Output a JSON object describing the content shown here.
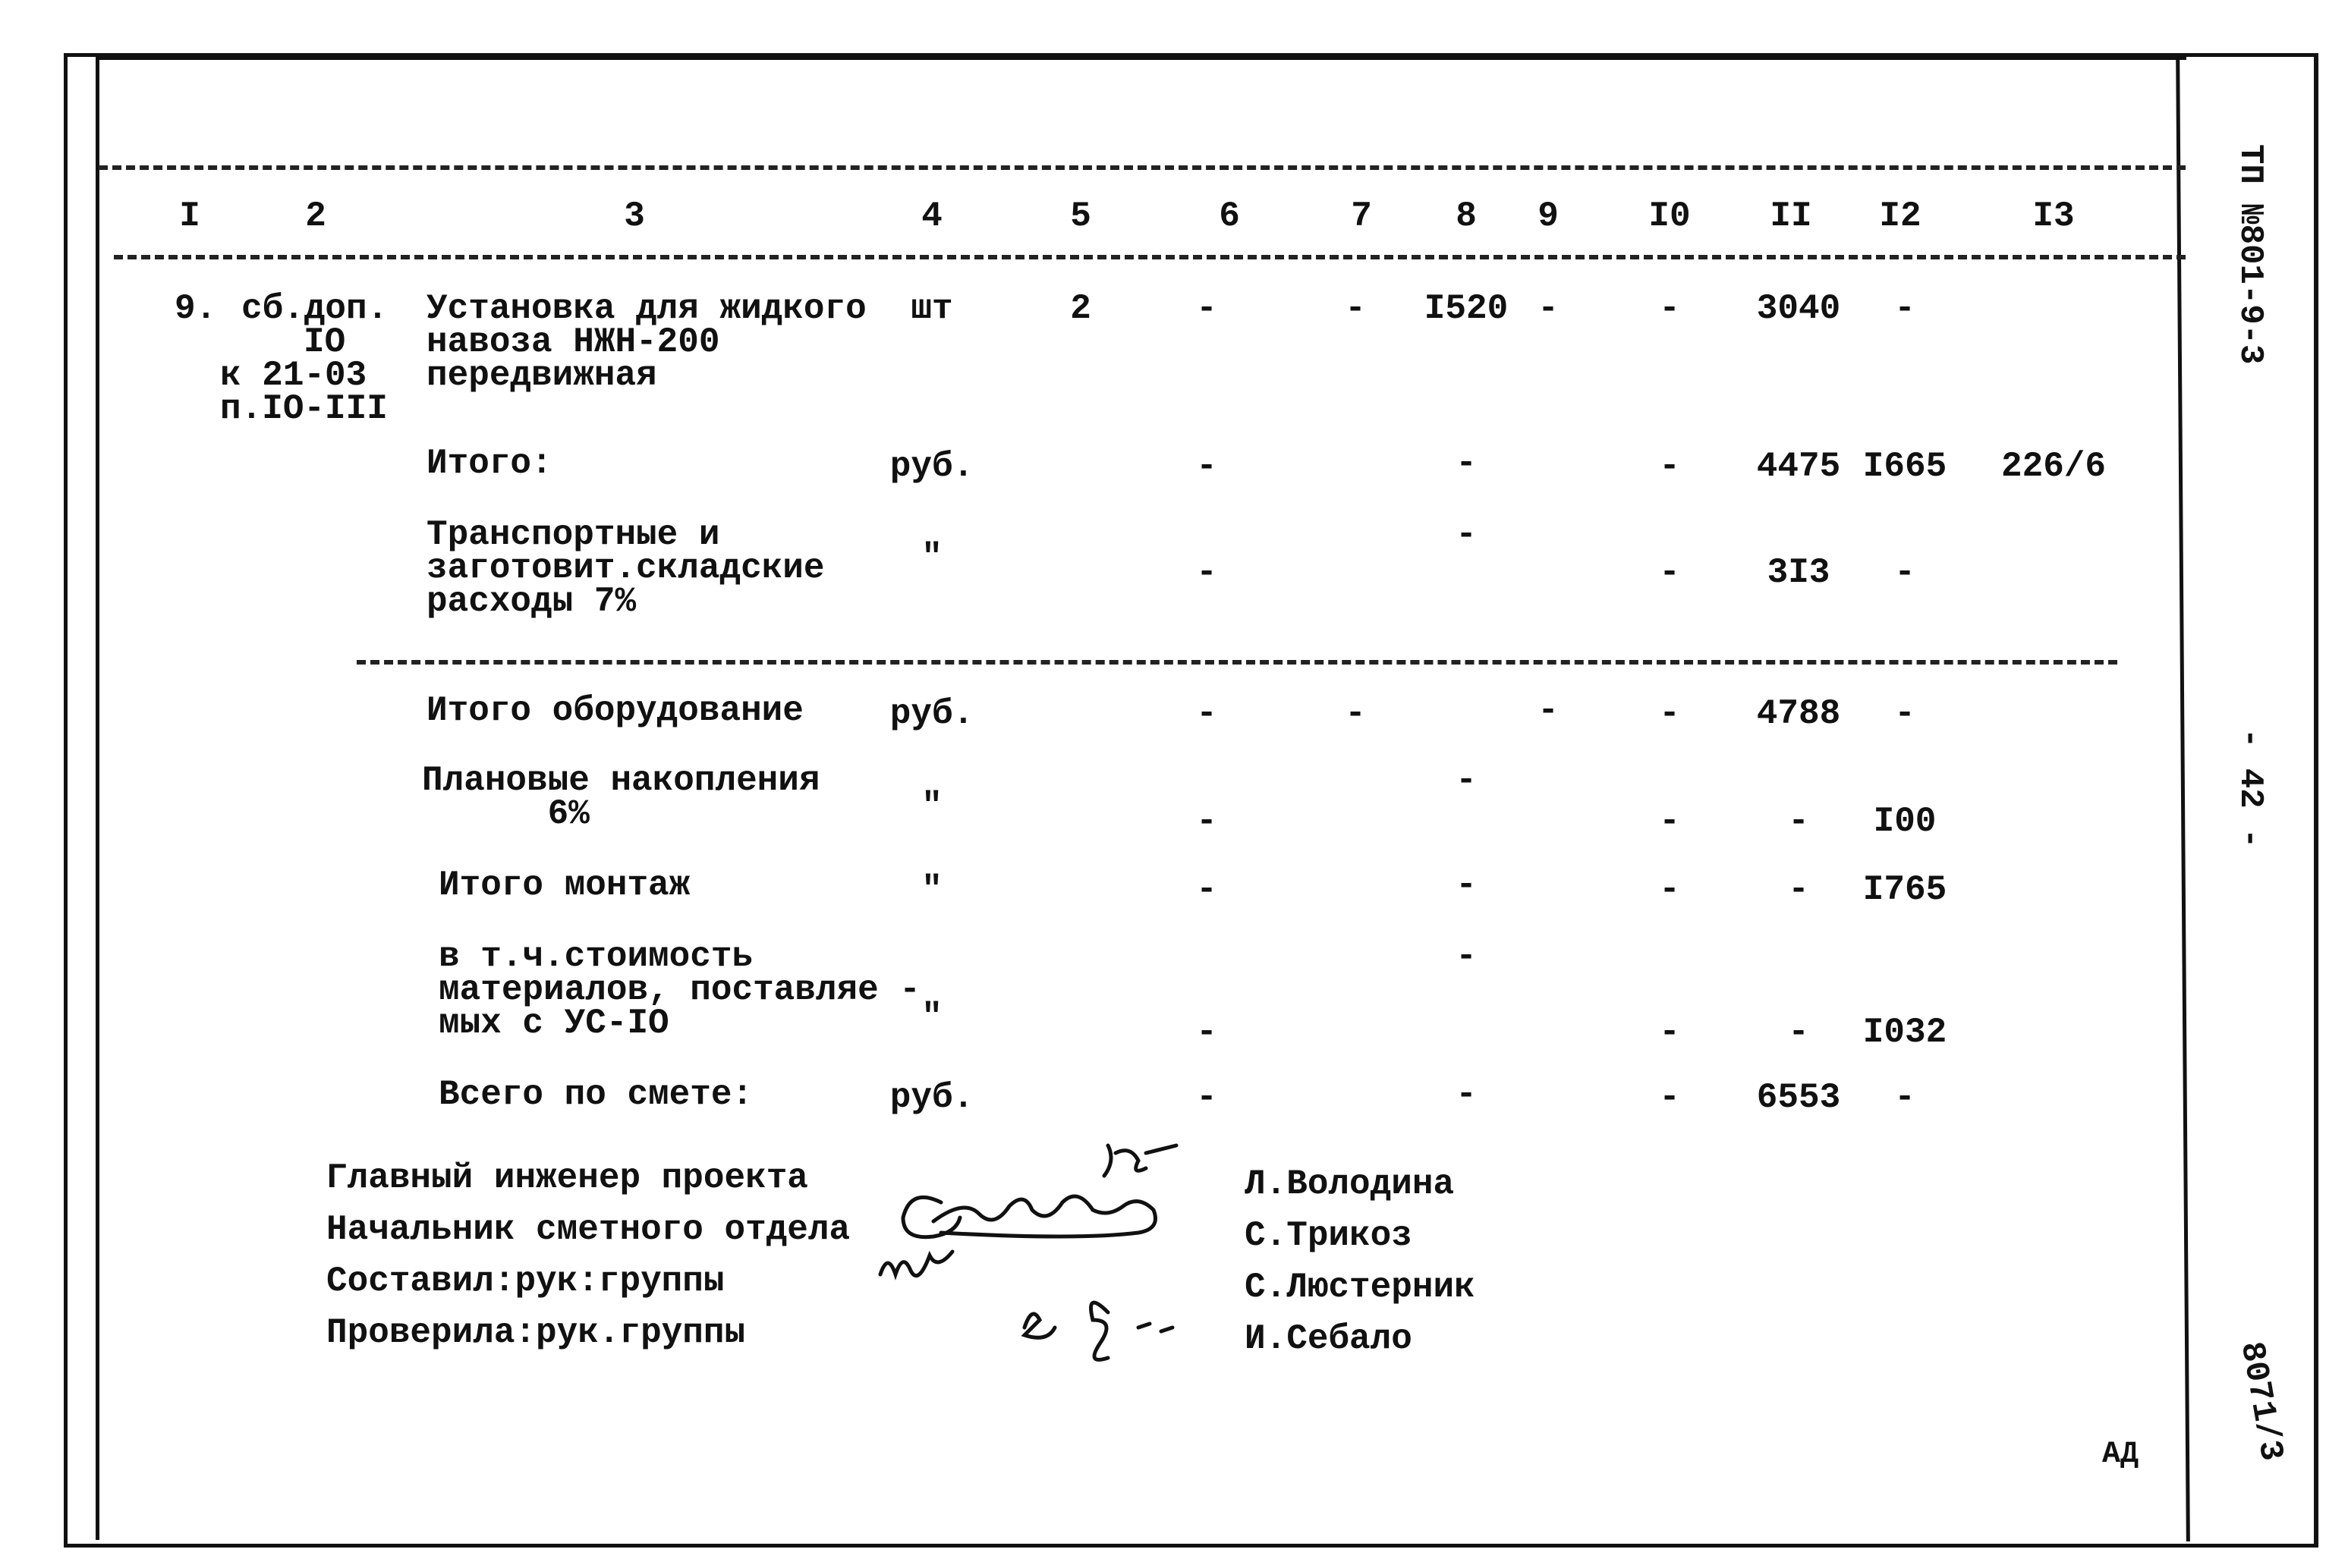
{
  "header": {
    "columns": [
      "I",
      "2",
      "3",
      "4",
      "5",
      "6",
      "7",
      "8",
      "9",
      "I0",
      "II",
      "I2",
      "I3"
    ]
  },
  "rows": [
    {
      "c1": "9.",
      "c2": [
        "сб.доп.",
        "IO",
        "к 21-03",
        "п.IO-III"
      ],
      "c3": [
        "Установка для жидкого",
        "навоза НЖН-200",
        "передвижная"
      ],
      "c4": "шт",
      "c5": "2",
      "c6": "-",
      "c7": "-",
      "c8": "I520",
      "c9": "-",
      "c10": "-",
      "c11": "3040",
      "c12": "-"
    },
    {
      "c3": [
        "Итого:"
      ],
      "c4": "руб.",
      "c6": "-",
      "c8": "-",
      "c10": "-",
      "c11": "4475",
      "c12": "I665",
      "c13": "226/6"
    },
    {
      "c3": [
        "Транспортные и",
        "заготовит.складские",
        "расходы 7%"
      ],
      "c4": "\"",
      "c6": "-",
      "c8": "-",
      "c10": "-",
      "c11": "3I3",
      "c12": "-"
    },
    {
      "c3": [
        "Итого оборудование"
      ],
      "c4": "руб.",
      "c6": "-",
      "c7": "-",
      "c9": "-",
      "c10": "-",
      "c11": "4788",
      "c12": "-"
    },
    {
      "c3": [
        "Плановые накопления",
        "      6%"
      ],
      "c4": "\"",
      "c6": "-",
      "c8": "-",
      "c10": "-",
      "c11": "-",
      "c12": "I00"
    },
    {
      "c3": [
        "Итого монтаж"
      ],
      "c4": "\"",
      "c6": "-",
      "c8": "-",
      "c10": "-",
      "c11": "-",
      "c12": "I765"
    },
    {
      "c3": [
        "в т.ч.стоимость",
        "материалов, поставляе -",
        "мых с УС-IO"
      ],
      "c4": "\"",
      "c6": "-",
      "c8": "-",
      "c10": "-",
      "c11": "-",
      "c12": "I032"
    },
    {
      "c3": [
        "Всего по смете:"
      ],
      "c4": "руб.",
      "c6": "-",
      "c8": "-",
      "c10": "-",
      "c11": "6553",
      "c12": "-"
    }
  ],
  "signatures": [
    {
      "role": "Главный инженер проекта",
      "name": "Л.Володина"
    },
    {
      "role": "Начальник сметного отдела",
      "name": "С.Трикоз"
    },
    {
      "role": "Составил:рук:группы",
      "name": "С.Люстерник"
    },
    {
      "role": "Проверила:рук.группы",
      "name": "И.Себало"
    }
  ],
  "stamp": "АД",
  "side": {
    "project": "ТП №801-9-3",
    "page": "- 42 -",
    "number": "8071/3"
  }
}
